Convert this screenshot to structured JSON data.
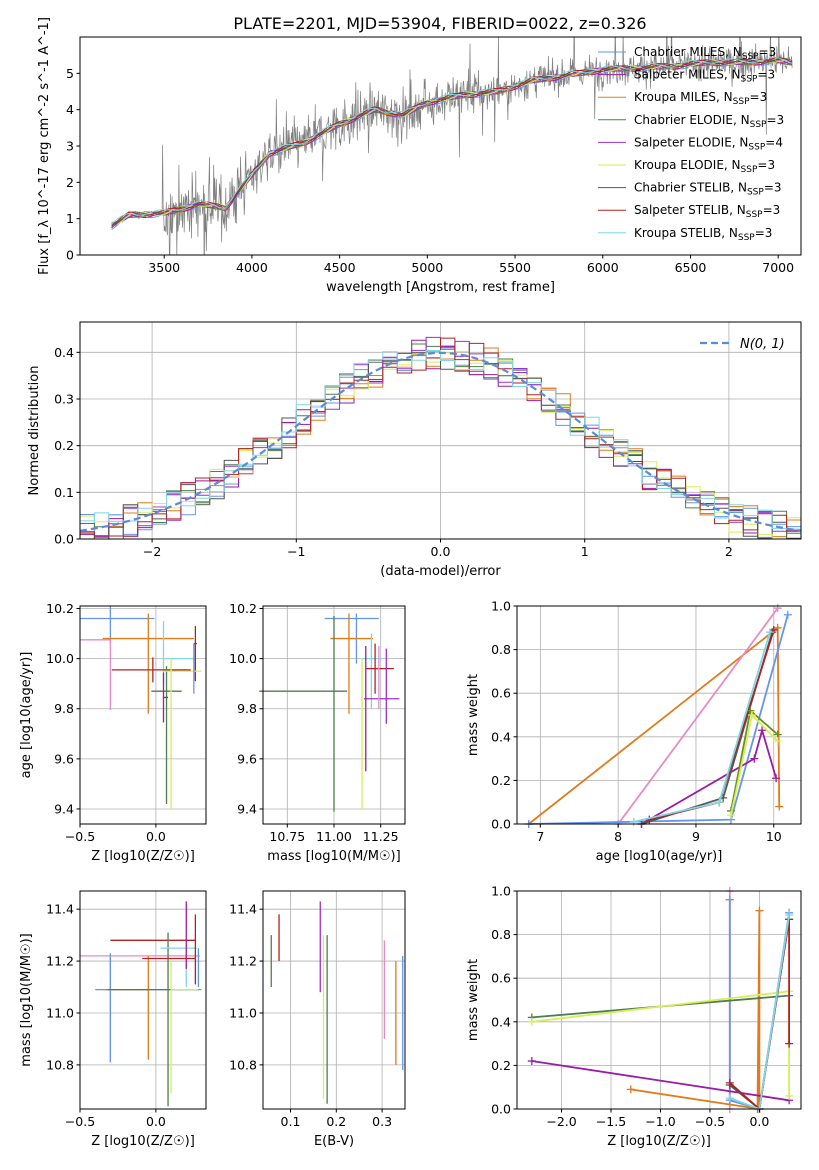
{
  "figure": {
    "title": "PLATE=2201, MJD=53904, FIBERID=0022, z=0.326",
    "model_colors": [
      "#6495ed",
      "#9a1ba5",
      "#e07b1b",
      "#4e7d4e",
      "#9932cc",
      "#d6ee58",
      "#555555",
      "#b22222",
      "#7ed7e5",
      "#6a8e23",
      "#e88bc5",
      "#cc7722"
    ]
  },
  "chart_data": [
    {
      "id": "spectrum",
      "type": "line",
      "title": "PLATE=2201, MJD=53904, FIBERID=0022, z=0.326",
      "xlabel": "wavelength [Angstrom, rest frame]",
      "ylabel": "Flux [f_λ 10^-17 erg cm^-2 s^-1 A^-1]",
      "xlim": [
        3020,
        7130
      ],
      "ylim": [
        0,
        6
      ],
      "xticks": [
        3500,
        4000,
        4500,
        5000,
        5500,
        6000,
        6500,
        7000
      ],
      "yticks": [
        0,
        1,
        2,
        3,
        4,
        5
      ],
      "data_color": "#7f7f7f",
      "data_range": [
        3200,
        7080
      ],
      "model_anchors": {
        "x": [
          3200,
          3300,
          3500,
          3700,
          3850,
          3950,
          4100,
          4300,
          4500,
          4700,
          4862,
          5000,
          5200,
          5400,
          5600,
          5800,
          6000,
          6200,
          6400,
          6600,
          6800,
          7000,
          7080
        ],
        "y": [
          0.8,
          1.1,
          1.15,
          1.4,
          1.3,
          1.9,
          2.8,
          3.1,
          3.6,
          4.0,
          3.85,
          4.2,
          4.4,
          4.5,
          4.8,
          4.95,
          5.1,
          5.15,
          5.2,
          5.3,
          5.3,
          5.35,
          5.3
        ]
      },
      "series": [
        {
          "name": "Chabrier MILES, N_SSP=3",
          "label_main": "Chabrier MILES, N",
          "label_sub": "SSP",
          "label_tail": "=3",
          "color": "#6495ed"
        },
        {
          "name": "Salpeter MILES, N_SSP=3",
          "label_main": "Salpeter MILES, N",
          "label_sub": "SSP",
          "label_tail": "=3",
          "color": "#9a1ba5"
        },
        {
          "name": "Kroupa MILES, N_SSP=3",
          "label_main": "Kroupa MILES, N",
          "label_sub": "SSP",
          "label_tail": "=3",
          "color": "#e07b1b"
        },
        {
          "name": "Chabrier ELODIE, N_SSP=3",
          "label_main": "Chabrier ELODIE, N",
          "label_sub": "SSP",
          "label_tail": "=3",
          "color": "#4e7d4e"
        },
        {
          "name": "Salpeter ELODIE, N_SSP=4",
          "label_main": "Salpeter ELODIE, N",
          "label_sub": "SSP",
          "label_tail": "=4",
          "color": "#9932cc"
        },
        {
          "name": "Kroupa ELODIE, N_SSP=3",
          "label_main": "Kroupa ELODIE, N",
          "label_sub": "SSP",
          "label_tail": "=3",
          "color": "#d6ee58"
        },
        {
          "name": "Chabrier STELIB, N_SSP=3",
          "label_main": "Chabrier STELIB, N",
          "label_sub": "SSP",
          "label_tail": "=3",
          "color": "#555555"
        },
        {
          "name": "Salpeter STELIB, N_SSP=3",
          "label_main": "Salpeter STELIB, N",
          "label_sub": "SSP",
          "label_tail": "=3",
          "color": "#b22222"
        },
        {
          "name": "Kroupa STELIB, N_SSP=3",
          "label_main": "Kroupa STELIB, N",
          "label_sub": "SSP",
          "label_tail": "=3",
          "color": "#7ed7e5"
        }
      ],
      "legend": "upper right"
    },
    {
      "id": "residuals",
      "type": "line",
      "xlabel": "(data-model)/error",
      "ylabel": "Normed distribution",
      "xlim": [
        -2.5,
        2.5
      ],
      "ylim": [
        0,
        0.465
      ],
      "xticks": [
        -2,
        -1,
        0,
        1,
        2
      ],
      "yticks": [
        0.0,
        0.1,
        0.2,
        0.3,
        0.4
      ],
      "grid": true,
      "gaussian_label": "N(0, 1)",
      "gaussian_color": "#5b8bd6",
      "legend": "upper right"
    },
    {
      "id": "age-vs-Z",
      "type": "scatter",
      "xlabel": "Z [log10(Z/Z☉)]",
      "ylabel": "age [log10(age/yr)]",
      "xlim": [
        -0.5,
        0.33
      ],
      "ylim": [
        9.34,
        10.21
      ],
      "xticks": [
        -0.5,
        0.0
      ],
      "yticks": [
        9.4,
        9.6,
        9.8,
        10.0,
        10.2
      ],
      "grid": true,
      "points": [
        {
          "x": -0.3,
          "y": 10.16,
          "xerr": [
            0.2,
            0.29
          ],
          "yerr": [
            0.1,
            0.05
          ],
          "color": "#6495ed"
        },
        {
          "x": -0.05,
          "y": 10.08,
          "xerr": [
            0.3,
            0.3
          ],
          "yerr": [
            0.3,
            0.1
          ],
          "color": "#e07b1b"
        },
        {
          "x": -0.3,
          "y": 10.075,
          "xerr": [
            0.2,
            0.0
          ],
          "yerr": [
            0.28,
            0.0
          ],
          "color": "#e88bc5"
        },
        {
          "x": 0.05,
          "y": 10.0,
          "xerr": [
            0.0,
            0.2
          ],
          "yerr": [
            0.1,
            0.15
          ],
          "color": "#7ed7e5"
        },
        {
          "x": -0.02,
          "y": 9.955,
          "xerr": [
            0.27,
            0.25
          ],
          "yerr": [
            0.05,
            0.05
          ],
          "color": "#b22222"
        },
        {
          "x": 0.26,
          "y": 10.06,
          "xerr": [
            0.01,
            0.01
          ],
          "yerr": [
            0.15,
            0.07
          ],
          "color": "#b22222"
        },
        {
          "x": 0.07,
          "y": 9.87,
          "xerr": [
            0.1,
            0.1
          ],
          "yerr": [
            0.45,
            0.1
          ],
          "color": "#4e7d4e"
        },
        {
          "x": 0.1,
          "y": 9.95,
          "xerr": [
            0.05,
            0.2
          ],
          "yerr": [
            0.55,
            0.05
          ],
          "color": "#d6ee58"
        },
        {
          "x": 0.05,
          "y": 9.845,
          "xerr": [
            0.0,
            0.03
          ],
          "yerr": [
            0.1,
            0.1
          ],
          "color": "#9a1ba5"
        },
        {
          "x": 0.25,
          "y": 9.96,
          "xerr": [
            0.0,
            0.0
          ],
          "yerr": [
            0.1,
            0.1
          ],
          "color": "#6495ed"
        }
      ]
    },
    {
      "id": "age-vs-mass",
      "type": "scatter",
      "xlabel": "mass [log10(M/M☉)]",
      "ylabel": "",
      "xlim": [
        10.62,
        11.38
      ],
      "ylim": [
        9.34,
        10.21
      ],
      "xtick_labels": [
        "10.75",
        "11.00",
        "11.25"
      ],
      "xticks": [
        10.75,
        11.0,
        11.25
      ],
      "yticks": [
        9.4,
        9.6,
        9.8,
        10.0,
        10.2
      ],
      "grid": true,
      "points": [
        {
          "x": 11.12,
          "y": 10.16,
          "xerr": [
            0.17,
            0.12
          ],
          "yerr": [
            0.18,
            0.02
          ],
          "color": "#6495ed"
        },
        {
          "x": 11.08,
          "y": 10.08,
          "xerr": [
            0.1,
            0.13
          ],
          "yerr": [
            0.3,
            0.1
          ],
          "color": "#e07b1b"
        },
        {
          "x": 11.2,
          "y": 10.0,
          "xerr": [
            0.05,
            0.05
          ],
          "yerr": [
            0.2,
            0.1
          ],
          "color": "#7ed7e5"
        },
        {
          "x": 11.22,
          "y": 9.96,
          "xerr": [
            0.05,
            0.1
          ],
          "yerr": [
            0.1,
            0.1
          ],
          "color": "#b22222"
        },
        {
          "x": 11.28,
          "y": 9.84,
          "xerr": [
            0.12,
            0.07
          ],
          "yerr": [
            0.1,
            0.2
          ],
          "color": "#9932cc"
        },
        {
          "x": 11.0,
          "y": 9.87,
          "xerr": [
            0.4,
            0.07
          ],
          "yerr": [
            0.48,
            0.3
          ],
          "color": "#4e7d4e"
        },
        {
          "x": 11.15,
          "y": 9.95,
          "xerr": [
            0.0,
            0.0
          ],
          "yerr": [
            0.55,
            0.05
          ],
          "color": "#d6ee58"
        },
        {
          "x": 11.17,
          "y": 9.95,
          "xerr": [
            0.0,
            0.0
          ],
          "yerr": [
            0.4,
            0.1
          ],
          "color": "#9a1ba5"
        },
        {
          "x": 11.24,
          "y": 10.0,
          "xerr": [
            0.0,
            0.0
          ],
          "yerr": [
            0.2,
            0.05
          ],
          "color": "#e88bc5"
        }
      ]
    },
    {
      "id": "mass-weight-vs-age",
      "type": "line",
      "xlabel": "age [log10(age/yr)]",
      "ylabel": "mass weight",
      "xlim": [
        6.7,
        10.35
      ],
      "ylim": [
        0,
        1
      ],
      "xticks": [
        7,
        8,
        9,
        10
      ],
      "yticks": [
        0.0,
        0.2,
        0.4,
        0.6,
        0.8,
        1.0
      ],
      "grid": true,
      "series": [
        {
          "color": "#e07b1b",
          "x": [
            6.85,
            10.05,
            10.07
          ],
          "y": [
            0.0,
            0.9,
            0.08
          ]
        },
        {
          "color": "#e88bc5",
          "x": [
            8.0,
            10.05
          ],
          "y": [
            0.0,
            0.99
          ]
        },
        {
          "color": "#6495ed",
          "x": [
            6.85,
            9.45,
            10.18
          ],
          "y": [
            0.0,
            0.02,
            0.96
          ]
        },
        {
          "color": "#9a1ba5",
          "x": [
            8.3,
            9.75,
            9.85,
            10.03
          ],
          "y": [
            0.0,
            0.3,
            0.43,
            0.21
          ]
        },
        {
          "color": "#555555",
          "x": [
            8.3,
            9.35,
            9.98
          ],
          "y": [
            0.0,
            0.12,
            0.88
          ]
        },
        {
          "color": "#b22222",
          "x": [
            8.4,
            9.3,
            10.0
          ],
          "y": [
            0.02,
            0.1,
            0.89
          ]
        },
        {
          "color": "#6a8e23",
          "x": [
            9.45,
            9.7,
            10.05
          ],
          "y": [
            0.06,
            0.52,
            0.41
          ]
        },
        {
          "color": "#d6ee58",
          "x": [
            9.45,
            9.72,
            10.05
          ],
          "y": [
            0.04,
            0.5,
            0.38
          ]
        },
        {
          "color": "#7ed7e5",
          "x": [
            8.2,
            9.3,
            9.95
          ],
          "y": [
            0.01,
            0.1,
            0.88
          ]
        }
      ]
    },
    {
      "id": "mass-vs-Z",
      "type": "scatter",
      "xlabel": "Z [log10(Z/Z☉)]",
      "ylabel": "mass [log10(M/M☉)]",
      "xlim": [
        -0.5,
        0.33
      ],
      "ylim": [
        10.63,
        11.47
      ],
      "xticks": [
        -0.5,
        0.0
      ],
      "yticks": [
        10.8,
        11.0,
        11.2,
        11.4
      ],
      "grid": true,
      "points": [
        {
          "x": -0.3,
          "y": 11.22,
          "xerr": [
            0.2,
            0.59
          ],
          "yerr": [
            0.41,
            0.0
          ],
          "color": "#e88bc5"
        },
        {
          "x": -0.02,
          "y": 11.28,
          "xerr": [
            0.28,
            0.28
          ],
          "yerr": [
            0.0,
            0.0
          ],
          "color": "#b22222"
        },
        {
          "x": -0.3,
          "y": 11.09,
          "xerr": [
            0.1,
            0.6
          ],
          "yerr": [
            0.28,
            0.14
          ],
          "color": "#6495ed"
        },
        {
          "x": -0.05,
          "y": 11.09,
          "xerr": [
            0.3,
            0.0
          ],
          "yerr": [
            0.27,
            0.13
          ],
          "color": "#e07b1b"
        },
        {
          "x": 0.08,
          "y": 11.09,
          "xerr": [
            0.4,
            0.2
          ],
          "yerr": [
            0.45,
            0.22
          ],
          "color": "#4e7d4e"
        },
        {
          "x": 0.1,
          "y": 11.09,
          "xerr": [
            0.0,
            0.18
          ],
          "yerr": [
            0.4,
            0.12
          ],
          "color": "#d6ee58"
        },
        {
          "x": 0.2,
          "y": 11.25,
          "xerr": [
            0.17,
            0.07
          ],
          "yerr": [
            0.15,
            0.0
          ],
          "color": "#7ed7e5"
        },
        {
          "x": 0.2,
          "y": 11.17,
          "xerr": [
            0.0,
            0.0
          ],
          "yerr": [
            0.0,
            0.26
          ],
          "color": "#9a1ba5"
        },
        {
          "x": 0.26,
          "y": 11.21,
          "xerr": [
            0.35,
            0.0
          ],
          "yerr": [
            0.1,
            0.17
          ],
          "color": "#b22222"
        },
        {
          "x": 0.28,
          "y": 11.15,
          "xerr": [
            0.0,
            0.0
          ],
          "yerr": [
            0.05,
            0.1
          ],
          "color": "#6495ed"
        }
      ]
    },
    {
      "id": "mass-vs-EBV",
      "type": "scatter",
      "xlabel": "E(B-V)",
      "ylabel": "",
      "xlim": [
        0.04,
        0.35
      ],
      "ylim": [
        10.63,
        11.47
      ],
      "xticks": [
        0.1,
        0.2,
        0.3
      ],
      "yticks": [
        10.8,
        11.0,
        11.2,
        11.4
      ],
      "grid": true,
      "points": [
        {
          "x": 0.058,
          "y": 11.2,
          "yerr": [
            0.1,
            0.1
          ],
          "color": "#4e7d4e"
        },
        {
          "x": 0.075,
          "y": 11.28,
          "yerr": [
            0.08,
            0.1
          ],
          "color": "#b22222"
        },
        {
          "x": 0.165,
          "y": 11.2,
          "yerr": [
            0.12,
            0.23
          ],
          "color": "#9932cc"
        },
        {
          "x": 0.172,
          "y": 11.0,
          "yerr": [
            0.33,
            0.3
          ],
          "color": "#d6ee58"
        },
        {
          "x": 0.18,
          "y": 11.02,
          "yerr": [
            0.37,
            0.28
          ],
          "color": "#4e7d4e"
        },
        {
          "x": 0.305,
          "y": 11.1,
          "yerr": [
            0.2,
            0.18
          ],
          "color": "#e88bc5"
        },
        {
          "x": 0.33,
          "y": 11.0,
          "yerr": [
            0.2,
            0.2
          ],
          "color": "#e07b1b"
        },
        {
          "x": 0.345,
          "y": 11.0,
          "yerr": [
            0.22,
            0.22
          ],
          "color": "#6495ed"
        }
      ]
    },
    {
      "id": "mass-weight-vs-Z",
      "type": "line",
      "xlabel": "Z [log10(Z/Z☉)]",
      "ylabel": "mass weight",
      "xlim": [
        -2.45,
        0.42
      ],
      "ylim": [
        0,
        1
      ],
      "xticks": [
        -2.0,
        -1.5,
        -1.0,
        -0.5,
        0.0
      ],
      "xtick_labels": [
        "−2.0",
        "−1.5",
        "−1.0",
        "−0.5",
        "0.0"
      ],
      "yticks": [
        0.0,
        0.2,
        0.4,
        0.6,
        0.8,
        1.0
      ],
      "grid": true,
      "series": [
        {
          "color": "#e88bc5",
          "x": [
            -0.3,
            -0.3,
            -0.3
          ],
          "y": [
            0.0,
            0.96,
            1.0
          ]
        },
        {
          "color": "#6495ed",
          "x": [
            -0.3,
            -0.3,
            0.0,
            0.3
          ],
          "y": [
            0.96,
            0.04,
            0.0,
            0.9
          ]
        },
        {
          "color": "#e07b1b",
          "x": [
            -1.3,
            0.0,
            0.0,
            -0.02
          ],
          "y": [
            0.09,
            0.0,
            0.91,
            0.0
          ]
        },
        {
          "color": "#9a1ba5",
          "x": [
            -2.3,
            0.3
          ],
          "y": [
            0.22,
            0.04
          ]
        },
        {
          "color": "#4e7d4e",
          "x": [
            -2.3,
            0.3
          ],
          "y": [
            0.42,
            0.52
          ]
        },
        {
          "color": "#d6ee58",
          "x": [
            -2.3,
            0.3,
            0.3
          ],
          "y": [
            0.4,
            0.54,
            0.06
          ]
        },
        {
          "color": "#555555",
          "x": [
            -0.3,
            0.0,
            0.3
          ],
          "y": [
            0.11,
            0.0,
            0.87
          ]
        },
        {
          "color": "#b22222",
          "x": [
            -0.3,
            0.0,
            0.3,
            0.3
          ],
          "y": [
            0.12,
            0.0,
            0.87,
            0.3
          ]
        },
        {
          "color": "#7ed7e5",
          "x": [
            -0.3,
            0.0,
            0.3
          ],
          "y": [
            0.05,
            0.0,
            0.89
          ]
        }
      ]
    }
  ]
}
